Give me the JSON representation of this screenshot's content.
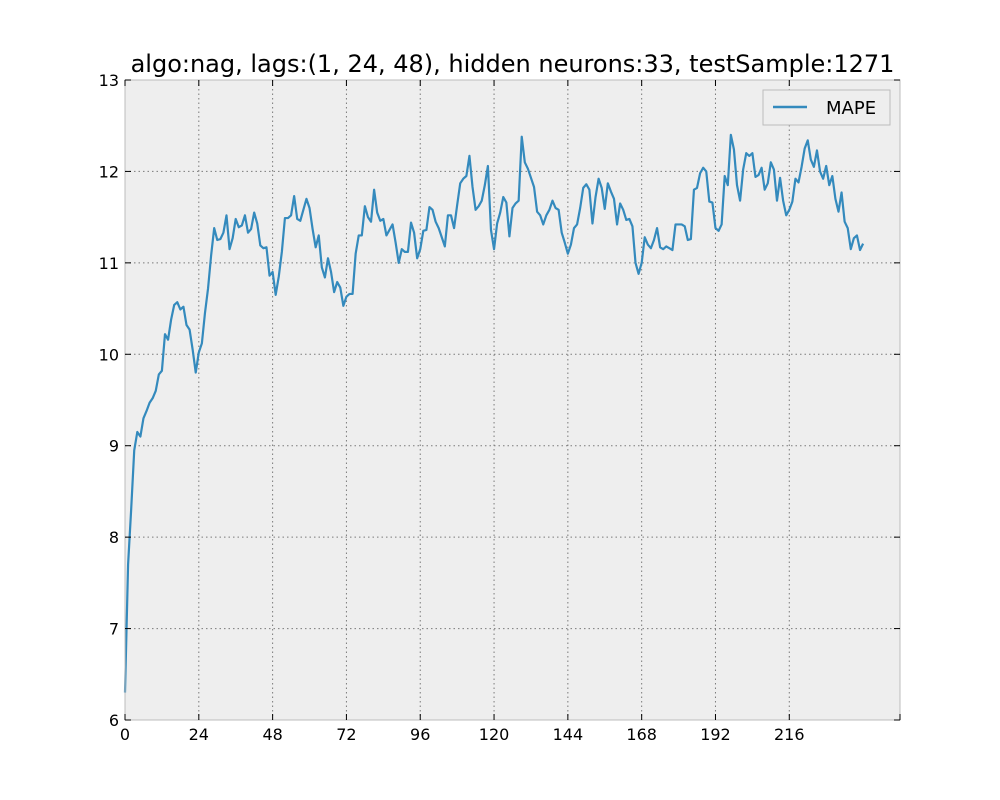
{
  "chart_data": {
    "type": "line",
    "title": "algo:nag, lags:(1, 24, 48), hidden neurons:33, testSample:1271",
    "xlabel": "",
    "ylabel": "",
    "xlim": [
      0,
      252
    ],
    "ylim": [
      6,
      13
    ],
    "xticks": [
      0,
      24,
      48,
      72,
      96,
      120,
      144,
      168,
      192,
      216
    ],
    "yticks": [
      6,
      7,
      8,
      9,
      10,
      11,
      12,
      13
    ],
    "grid": true,
    "legend_position": "top-right",
    "series": [
      {
        "name": "MAPE",
        "color": "#348abd",
        "values": [
          6.3,
          7.7,
          8.3,
          8.95,
          9.15,
          9.1,
          9.3,
          9.38,
          9.47,
          9.52,
          9.6,
          9.78,
          9.82,
          10.22,
          10.16,
          10.38,
          10.54,
          10.57,
          10.49,
          10.52,
          10.32,
          10.27,
          10.05,
          9.8,
          10.02,
          10.12,
          10.45,
          10.72,
          11.08,
          11.38,
          11.25,
          11.26,
          11.33,
          11.52,
          11.15,
          11.27,
          11.48,
          11.39,
          11.41,
          11.52,
          11.33,
          11.37,
          11.55,
          11.43,
          11.19,
          11.16,
          11.17,
          10.86,
          10.9,
          10.65,
          10.85,
          11.12,
          11.49,
          11.49,
          11.52,
          11.73,
          11.48,
          11.46,
          11.58,
          11.7,
          11.6,
          11.37,
          11.17,
          11.3,
          10.95,
          10.84,
          11.05,
          10.9,
          10.68,
          10.79,
          10.73,
          10.53,
          10.63,
          10.66,
          10.66,
          11.1,
          11.3,
          11.3,
          11.62,
          11.5,
          11.45,
          11.8,
          11.55,
          11.46,
          11.48,
          11.3,
          11.36,
          11.42,
          11.22,
          11.0,
          11.15,
          11.12,
          11.12,
          11.44,
          11.33,
          11.05,
          11.15,
          11.35,
          11.36,
          11.61,
          11.58,
          11.45,
          11.38,
          11.28,
          11.18,
          11.52,
          11.52,
          11.38,
          11.63,
          11.87,
          11.92,
          11.95,
          12.17,
          11.83,
          11.58,
          11.62,
          11.68,
          11.85,
          12.06,
          11.36,
          11.15,
          11.43,
          11.55,
          11.72,
          11.66,
          11.29,
          11.6,
          11.65,
          11.68,
          12.38,
          12.1,
          12.03,
          11.93,
          11.83,
          11.56,
          11.52,
          11.42,
          11.52,
          11.58,
          11.68,
          11.6,
          11.58,
          11.33,
          11.22,
          11.1,
          11.2,
          11.38,
          11.42,
          11.6,
          11.82,
          11.86,
          11.8,
          11.43,
          11.72,
          11.92,
          11.82,
          11.59,
          11.87,
          11.78,
          11.7,
          11.42,
          11.65,
          11.58,
          11.47,
          11.48,
          11.4,
          11.0,
          10.88,
          11.0,
          11.28,
          11.2,
          11.16,
          11.25,
          11.38,
          11.17,
          11.15,
          11.18,
          11.16,
          11.14,
          11.42,
          11.42,
          11.42,
          11.4,
          11.25,
          11.26,
          11.8,
          11.82,
          11.98,
          12.04,
          12.0,
          11.67,
          11.66,
          11.38,
          11.35,
          11.42,
          11.95,
          11.85,
          12.4,
          12.24,
          11.85,
          11.68,
          12.02,
          12.2,
          12.17,
          12.2,
          11.94,
          11.96,
          12.04,
          11.8,
          11.87,
          12.1,
          12.02,
          11.68,
          11.93,
          11.68,
          11.52,
          11.58,
          11.67,
          11.92,
          11.88,
          12.05,
          12.25,
          12.34,
          12.13,
          12.05,
          12.23,
          12.0,
          11.92,
          12.06,
          11.85,
          11.95,
          11.7,
          11.56,
          11.77,
          11.45,
          11.38,
          11.15,
          11.27,
          11.3,
          11.14,
          11.21
        ]
      }
    ]
  }
}
